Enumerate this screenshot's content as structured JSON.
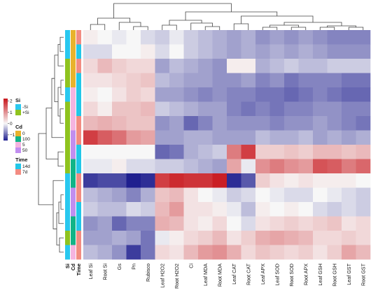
{
  "chart_data": {
    "type": "heatmap",
    "columns": [
      "Leaf Si",
      "Root Si",
      "Gs",
      "Pn",
      "Rubisco",
      "Leaf H2O2",
      "Root H2O2",
      "Ci",
      "Leaf MDA",
      "Root MDA",
      "Leaf CAT",
      "Root CAT",
      "Leaf APX",
      "Leaf SOD",
      "Root SOD",
      "Root APX",
      "Leaf GSH",
      "Root GSH",
      "Leaf GST",
      "Root GST"
    ],
    "rows": [
      {
        "si": "-Si",
        "cd": "0",
        "time": "7d",
        "values": [
          0.1,
          0.0,
          -0.1,
          0.0,
          -0.2,
          -0.3,
          -0.1,
          -0.3,
          -0.4,
          -0.5,
          -0.6,
          -0.5,
          -0.7,
          -0.6,
          -0.7,
          -0.6,
          -0.7,
          -0.8,
          -0.8,
          -0.8
        ]
      },
      {
        "si": "-Si",
        "cd": "0",
        "time": "14d",
        "values": [
          -0.2,
          -0.2,
          0.0,
          0.0,
          0.1,
          -0.2,
          0.0,
          -0.3,
          -0.4,
          -0.5,
          -0.6,
          -0.5,
          -0.6,
          -0.5,
          -0.6,
          -0.5,
          -0.6,
          -0.7,
          -0.7,
          -0.7
        ]
      },
      {
        "si": "+Si",
        "cd": "0",
        "time": "7d",
        "values": [
          0.3,
          0.6,
          0.4,
          0.3,
          0.3,
          -0.6,
          -0.4,
          -0.5,
          -0.6,
          -0.7,
          0.1,
          0.1,
          -0.5,
          -0.4,
          -0.3,
          -0.4,
          -0.4,
          -0.3,
          -0.3,
          -0.3
        ]
      },
      {
        "si": "+Si",
        "cd": "0",
        "time": "14d",
        "values": [
          0.2,
          0.2,
          0.3,
          0.4,
          0.5,
          -0.4,
          -0.5,
          -0.6,
          -0.6,
          -0.7,
          -0.7,
          -0.6,
          -0.8,
          -0.7,
          -0.9,
          -0.8,
          -0.8,
          -0.8,
          -0.9,
          -0.9
        ]
      },
      {
        "si": "-Si",
        "cd": "5",
        "time": "14d",
        "values": [
          0.1,
          0.0,
          0.2,
          0.4,
          0.3,
          -0.6,
          -0.6,
          -0.7,
          -0.8,
          -0.7,
          -0.8,
          -0.8,
          -0.9,
          -0.9,
          -1.0,
          -0.9,
          -0.8,
          -0.9,
          -1.0,
          -1.0
        ]
      },
      {
        "si": "+Si",
        "cd": "5",
        "time": "14d",
        "values": [
          0.3,
          0.1,
          0.5,
          0.5,
          0.6,
          -0.3,
          -0.4,
          -0.5,
          -0.6,
          -0.6,
          -0.8,
          -0.9,
          -0.8,
          -0.9,
          -0.8,
          -0.8,
          -0.7,
          -0.7,
          -0.8,
          -0.8
        ]
      },
      {
        "si": "+Si",
        "cd": "5",
        "time": "7d",
        "values": [
          0.6,
          0.7,
          0.6,
          0.5,
          0.5,
          -0.7,
          -0.6,
          -1.0,
          -0.8,
          -0.6,
          -0.7,
          -0.7,
          -0.7,
          -0.8,
          -0.7,
          -0.7,
          -0.6,
          -0.7,
          -0.8,
          -0.9
        ]
      },
      {
        "si": "+Si",
        "cd": "50",
        "time": "7d",
        "values": [
          1.8,
          1.5,
          1.3,
          0.9,
          0.8,
          -0.6,
          -0.6,
          -0.5,
          -0.5,
          -0.6,
          -0.6,
          -0.6,
          -0.4,
          -0.5,
          -0.5,
          -0.4,
          -0.6,
          -0.5,
          -0.6,
          -0.5
        ]
      },
      {
        "si": "+Si",
        "cd": "50",
        "time": "14d",
        "values": [
          0.0,
          0.0,
          0.0,
          0.0,
          0.0,
          -1.0,
          -0.9,
          -0.5,
          -0.4,
          -0.3,
          1.2,
          1.8,
          0.4,
          0.4,
          0.5,
          0.4,
          0.6,
          0.6,
          0.5,
          0.6
        ]
      },
      {
        "si": "+Si",
        "cd": "100",
        "time": "14d",
        "values": [
          -0.1,
          -0.1,
          0.1,
          -0.2,
          -0.2,
          -0.3,
          -0.3,
          -0.4,
          -0.5,
          -0.6,
          0.8,
          -0.1,
          1.0,
          1.2,
          1.0,
          0.9,
          1.6,
          1.5,
          1.2,
          1.4
        ]
      },
      {
        "si": "-Si",
        "cd": "100",
        "time": "7d",
        "values": [
          -1.3,
          -1.2,
          -1.2,
          -1.5,
          -1.4,
          1.8,
          2.0,
          1.9,
          1.9,
          2.1,
          -1.4,
          -1.1,
          0.4,
          0.2,
          0.1,
          0.2,
          0.1,
          0.1,
          0.1,
          0.0
        ]
      },
      {
        "si": "-Si",
        "cd": "50",
        "time": "7d",
        "values": [
          -0.4,
          -0.5,
          -0.6,
          -0.8,
          -0.5,
          0.5,
          0.6,
          0.2,
          0.0,
          -0.1,
          -0.3,
          -0.2,
          0.0,
          -0.1,
          -0.2,
          -0.2,
          0.0,
          -0.1,
          -0.2,
          -0.3
        ]
      },
      {
        "si": "-Si",
        "cd": "50",
        "time": "14d",
        "values": [
          -0.3,
          -0.4,
          -0.4,
          -0.2,
          -0.3,
          0.6,
          0.9,
          0.2,
          0.2,
          0.1,
          -0.1,
          -0.4,
          0.1,
          0.0,
          0.1,
          0.0,
          -0.2,
          -0.3,
          -0.2,
          -0.3
        ]
      },
      {
        "si": "-Si",
        "cd": "100",
        "time": "14d",
        "values": [
          -0.7,
          -0.6,
          -1.0,
          -0.8,
          -0.8,
          0.7,
          0.6,
          0.2,
          0.1,
          0.3,
          0.0,
          -0.2,
          0.2,
          0.3,
          0.4,
          0.3,
          0.4,
          0.5,
          0.2,
          0.3
        ]
      },
      {
        "si": "+Si",
        "cd": "100",
        "time": "7d",
        "values": [
          -0.6,
          -0.6,
          -0.5,
          -0.6,
          -0.9,
          -0.1,
          0.1,
          0.3,
          0.4,
          0.6,
          0.2,
          0.4,
          0.7,
          0.8,
          0.7,
          0.6,
          0.3,
          0.3,
          0.4,
          0.3
        ]
      },
      {
        "si": "-Si",
        "cd": "5",
        "time": "7d",
        "values": [
          -0.4,
          -0.5,
          -0.7,
          -1.3,
          -0.9,
          0.3,
          0.2,
          0.6,
          0.9,
          1.0,
          0.7,
          0.3,
          0.5,
          0.4,
          0.3,
          0.4,
          0.2,
          0.4,
          0.8,
          0.6
        ]
      }
    ],
    "color_scale": {
      "low": "#1f1f8f",
      "mid": "#f7f7f7",
      "high": "#c8151b",
      "ticks": [
        -1,
        0,
        1,
        2
      ],
      "range": [
        -1.5,
        2.2
      ]
    },
    "annotations": {
      "Si": {
        "colors": {
          "-Si": "#29c8ef",
          "+Si": "#8fc31f"
        },
        "legend": [
          "-Si",
          "+Si"
        ]
      },
      "Cd": {
        "colors": {
          "0": "#e8b32c",
          "100": "#11b487",
          "5": "#f5b4e0",
          "50": "#c18ef0"
        },
        "legend": [
          "0",
          "100",
          "5",
          "50"
        ]
      },
      "Time": {
        "colors": {
          "14d": "#22c7e8",
          "7d": "#f28c82"
        },
        "legend": [
          "14d",
          "7d"
        ]
      }
    },
    "annotation_order": [
      "Si",
      "Cd",
      "Time"
    ],
    "legend_order": [
      "Si",
      "Cd",
      "Time"
    ]
  }
}
